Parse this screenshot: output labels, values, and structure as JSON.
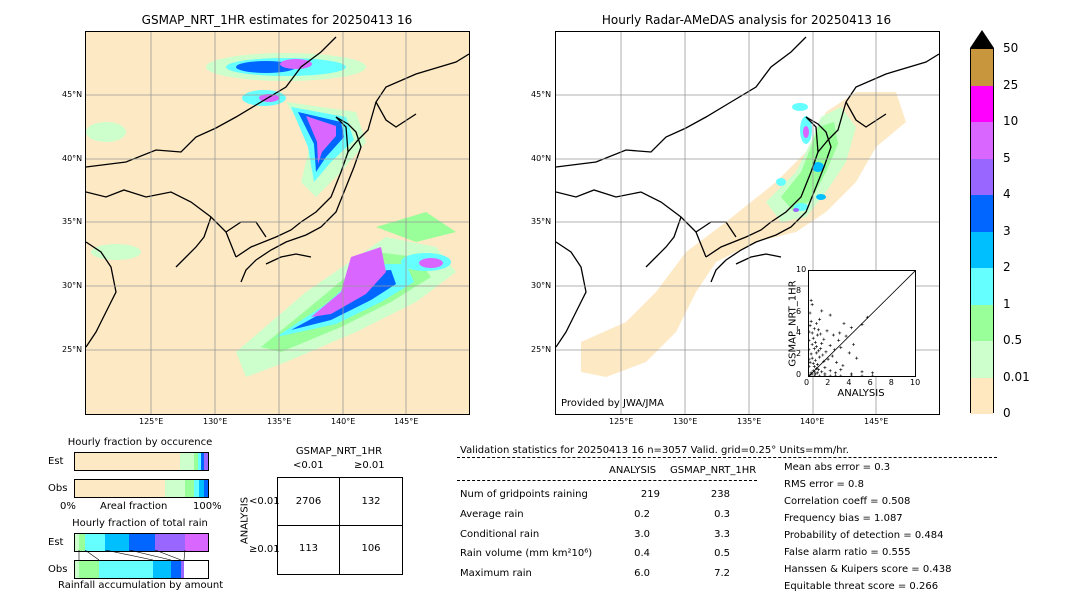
{
  "left_map": {
    "title": "GSMAP_NRT_1HR estimates for 20250413 16",
    "lat_ticks": [
      "45°N",
      "40°N",
      "35°N",
      "30°N",
      "25°N"
    ],
    "lon_ticks": [
      "125°E",
      "130°E",
      "135°E",
      "140°E",
      "145°E"
    ]
  },
  "right_map": {
    "title": "Hourly Radar-AMeDAS analysis for 20250413 16",
    "lat_ticks": [
      "45°N",
      "40°N",
      "35°N",
      "30°N",
      "25°N"
    ],
    "lon_ticks": [
      "125°E",
      "130°E",
      "135°E",
      "140°E",
      "145°E"
    ],
    "credit": "Provided by JWA/JMA"
  },
  "colorbar": {
    "labels": [
      "50",
      "25",
      "10",
      "5",
      "4",
      "3",
      "2",
      "1",
      "0.5",
      "0.01",
      "0"
    ],
    "colors": [
      "#c8963c",
      "#ff00ff",
      "#d966ff",
      "#9966ff",
      "#0066ff",
      "#00bfff",
      "#66ffff",
      "#99ff99",
      "#ccffcc",
      "#ffe8c0"
    ]
  },
  "occurrence": {
    "title": "Hourly fraction by occurence",
    "row_est": "Est",
    "row_obs": "Obs",
    "axis_left": "0%",
    "axis_mid": "Areal fraction",
    "axis_right": "100%"
  },
  "total_rain": {
    "title": "Hourly fraction of total rain",
    "row_est": "Est",
    "row_obs": "Obs",
    "footer": "Rainfall accumulation by amount"
  },
  "contingency": {
    "col_title": "GSMAP_NRT_1HR",
    "col_lt": "<0.01",
    "col_ge": "≥0.01",
    "row_title": "ANALYSIS",
    "row_lt": "<0.01",
    "row_ge": "≥0.01",
    "cells": [
      "2706",
      "132",
      "113",
      "106"
    ]
  },
  "validation": {
    "header": "Validation statistics for 20250413 16  n=3057 Valid. grid=0.25° Units=mm/hr.",
    "col_analysis": "ANALYSIS",
    "col_gsmap": "GSMAP_NRT_1HR",
    "rows": [
      {
        "label": "Num of gridpoints raining",
        "analysis": "219",
        "gsmap": "238"
      },
      {
        "label": "Average rain",
        "analysis": "0.2",
        "gsmap": "0.3"
      },
      {
        "label": "Conditional rain",
        "analysis": "3.0",
        "gsmap": "3.3"
      },
      {
        "label": "Rain volume (mm km²10⁶)",
        "analysis": "0.4",
        "gsmap": "0.5"
      },
      {
        "label": "Maximum rain",
        "analysis": "6.0",
        "gsmap": "7.2"
      }
    ],
    "scores": [
      "Mean abs error =    0.3",
      "RMS error =    0.8",
      "Correlation coeff =  0.508",
      "Frequency bias =  1.087",
      "Probability of detection =  0.484",
      "False alarm ratio =  0.555",
      "Hanssen & Kuipers score =  0.438",
      "Equitable threat score =  0.266"
    ]
  },
  "chart_data": {
    "type": "scatter",
    "xlabel": "ANALYSIS",
    "ylabel": "GSMAP_NRT_1HR",
    "xlim": [
      0,
      10
    ],
    "ylim": [
      0,
      10
    ],
    "xticks": [
      "0",
      "2",
      "4",
      "6",
      "8",
      "10"
    ],
    "yticks": [
      "0",
      "2",
      "4",
      "6",
      "8",
      "10"
    ],
    "points": [
      [
        0.1,
        4.8
      ],
      [
        0.2,
        5.2
      ],
      [
        0.3,
        4.1
      ],
      [
        0.4,
        3.6
      ],
      [
        0.5,
        4.5
      ],
      [
        0.6,
        3.2
      ],
      [
        0.7,
        2.8
      ],
      [
        0.8,
        3.9
      ],
      [
        0.9,
        2.4
      ],
      [
        1.0,
        5.4
      ],
      [
        0.2,
        2.1
      ],
      [
        0.3,
        1.7
      ],
      [
        0.4,
        1.2
      ],
      [
        0.5,
        0.9
      ],
      [
        0.6,
        1.5
      ],
      [
        0.7,
        2.2
      ],
      [
        0.8,
        1.1
      ],
      [
        0.9,
        0.6
      ],
      [
        1.0,
        1.8
      ],
      [
        1.1,
        2.6
      ],
      [
        1.2,
        3.1
      ],
      [
        1.3,
        2.0
      ],
      [
        1.4,
        1.4
      ],
      [
        1.5,
        0.8
      ],
      [
        1.6,
        2.3
      ],
      [
        1.8,
        1.6
      ],
      [
        2.0,
        2.9
      ],
      [
        2.2,
        1.9
      ],
      [
        2.4,
        2.5
      ],
      [
        2.6,
        1.3
      ],
      [
        2.8,
        3.4
      ],
      [
        3.0,
        2.7
      ],
      [
        3.2,
        1.0
      ],
      [
        3.5,
        3.8
      ],
      [
        3.8,
        2.2
      ],
      [
        4.0,
        4.6
      ],
      [
        4.2,
        3.0
      ],
      [
        4.5,
        1.7
      ],
      [
        5.0,
        4.9
      ],
      [
        5.5,
        5.6
      ],
      [
        0.1,
        0.1
      ],
      [
        0.2,
        0.3
      ],
      [
        0.3,
        0.2
      ],
      [
        0.4,
        0.5
      ],
      [
        0.5,
        0.4
      ],
      [
        0.6,
        0.2
      ],
      [
        0.7,
        0.7
      ],
      [
        0.8,
        0.3
      ],
      [
        1.2,
        0.4
      ],
      [
        1.5,
        0.2
      ],
      [
        2.0,
        0.5
      ],
      [
        2.5,
        0.3
      ],
      [
        3.0,
        0.6
      ],
      [
        4.0,
        0.2
      ],
      [
        5.0,
        0.4
      ],
      [
        6.0,
        0.3
      ],
      [
        0.1,
        6.0
      ],
      [
        0.3,
        6.8
      ],
      [
        0.2,
        7.2
      ],
      [
        1.2,
        6.2
      ],
      [
        2.0,
        5.8
      ],
      [
        0.0,
        0.9
      ],
      [
        0.0,
        1.6
      ],
      [
        0.0,
        2.5
      ],
      [
        0.0,
        3.4
      ],
      [
        0.0,
        4.2
      ],
      [
        0.1,
        1.3
      ],
      [
        0.3,
        3.0
      ],
      [
        0.5,
        2.6
      ],
      [
        0.7,
        5.0
      ],
      [
        0.9,
        4.4
      ],
      [
        1.1,
        4.0
      ],
      [
        1.4,
        3.5
      ],
      [
        1.7,
        4.3
      ],
      [
        2.3,
        3.9
      ],
      [
        2.9,
        4.1
      ],
      [
        3.3,
        5.0
      ],
      [
        1.0,
        0.0
      ],
      [
        2.0,
        0.0
      ],
      [
        3.0,
        0.0
      ],
      [
        4.0,
        0.0
      ],
      [
        5.0,
        0.0
      ],
      [
        6.0,
        0.0
      ],
      [
        0.5,
        0.0
      ],
      [
        1.5,
        0.0
      ],
      [
        2.5,
        0.0
      ]
    ]
  }
}
